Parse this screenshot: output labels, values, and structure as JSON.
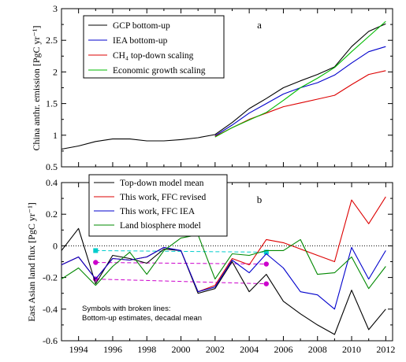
{
  "chart_data": [
    {
      "type": "line",
      "panel_label": "a",
      "title": "",
      "xlabel": "",
      "ylabel": "China anthr. emission [PgC yr⁻¹]",
      "xlim": [
        1993,
        2012.4
      ],
      "ylim": [
        0.5,
        3
      ],
      "yticks": [
        0.5,
        1,
        1.5,
        2,
        2.5,
        3
      ],
      "ytick_labels": [
        "0.5",
        "1",
        "1.5",
        "2",
        "2.5",
        "3"
      ],
      "legend_position": "top-left",
      "series": [
        {
          "name": "GCP bottom-up",
          "color": "#000000",
          "x": [
            1993,
            1994,
            1995,
            1996,
            1997,
            1998,
            1999,
            2000,
            2001,
            2002,
            2003,
            2004,
            2005,
            2006,
            2007,
            2008,
            2009,
            2010,
            2011,
            2012
          ],
          "y": [
            0.78,
            0.83,
            0.9,
            0.94,
            0.94,
            0.91,
            0.91,
            0.93,
            0.96,
            1.01,
            1.2,
            1.42,
            1.58,
            1.75,
            1.86,
            1.96,
            2.08,
            2.4,
            2.64,
            2.76
          ]
        },
        {
          "name": "IEA bottom-up",
          "color": "#0000cc",
          "x": [
            2002,
            2003,
            2004,
            2005,
            2006,
            2007,
            2008,
            2009,
            2010,
            2011,
            2012
          ],
          "y": [
            0.99,
            1.16,
            1.35,
            1.5,
            1.65,
            1.75,
            1.83,
            1.95,
            2.14,
            2.32,
            2.4
          ]
        },
        {
          "name": "CH₄ top-down scaling",
          "color": "#dd0000",
          "x": [
            2002,
            2003,
            2004,
            2005,
            2006,
            2007,
            2008,
            2009,
            2010,
            2011,
            2012
          ],
          "y": [
            0.98,
            1.12,
            1.25,
            1.35,
            1.45,
            1.51,
            1.57,
            1.63,
            1.8,
            1.96,
            2.02
          ]
        },
        {
          "name": "Economic growth scaling",
          "color": "#00bb00",
          "x": [
            2002,
            2003,
            2004,
            2005,
            2006,
            2007,
            2008,
            2009,
            2010,
            2011,
            2012
          ],
          "y": [
            0.97,
            1.12,
            1.24,
            1.36,
            1.55,
            1.75,
            1.9,
            2.07,
            2.32,
            2.56,
            2.8
          ]
        }
      ]
    },
    {
      "type": "line",
      "panel_label": "b",
      "title": "",
      "xlabel": "",
      "ylabel": "East Asian land flux [PgC yr⁻¹]",
      "xlim": [
        1993,
        2012.4
      ],
      "ylim": [
        -0.6,
        0.4
      ],
      "yticks": [
        -0.6,
        -0.4,
        -0.2,
        0,
        0.2,
        0.4
      ],
      "ytick_labels": [
        "-0.6",
        "-0.4",
        "-0.2",
        "0",
        "0.2",
        "0.4"
      ],
      "xticks": [
        1994,
        1996,
        1998,
        2000,
        2002,
        2004,
        2006,
        2008,
        2010,
        2012
      ],
      "xtick_labels": [
        "1994",
        "1996",
        "1998",
        "2000",
        "2002",
        "2004",
        "2006",
        "2008",
        "2010",
        "2012"
      ],
      "zero_line": "dotted",
      "legend_position": "top-left",
      "note": [
        "Symbols with broken lines:",
        "Bottom-up estimates, decadal mean"
      ],
      "series": [
        {
          "name": "Top-down model mean",
          "color": "#000000",
          "x": [
            1993,
            1994,
            1995,
            1996,
            1997,
            1998,
            1999,
            2000,
            2001,
            2002,
            2003,
            2004,
            2005,
            2006,
            2007,
            2008,
            2009,
            2010,
            2011,
            2012
          ],
          "y": [
            -0.03,
            0.11,
            -0.24,
            -0.06,
            -0.08,
            -0.11,
            -0.02,
            -0.03,
            -0.3,
            -0.27,
            -0.1,
            -0.29,
            -0.18,
            -0.35,
            -0.43,
            -0.5,
            -0.56,
            -0.28,
            -0.53,
            -0.4
          ]
        },
        {
          "name": "This work, FFC revised",
          "color": "#dd0000",
          "x": [
            1993,
            1994,
            1995,
            1996,
            1997,
            1998,
            1999,
            2000,
            2001,
            2002,
            2003,
            2004,
            2005,
            2006,
            2007,
            2008,
            2009,
            2010,
            2011,
            2012
          ],
          "y": [
            -0.12,
            -0.07,
            -0.21,
            -0.08,
            -0.09,
            -0.07,
            -0.01,
            -0.03,
            -0.29,
            -0.25,
            -0.08,
            -0.12,
            0.04,
            0.02,
            -0.02,
            -0.06,
            -0.1,
            0.29,
            0.14,
            0.31
          ]
        },
        {
          "name": "This work, FFC IEA",
          "color": "#0000cc",
          "x": [
            1993,
            1994,
            1995,
            1996,
            1997,
            1998,
            1999,
            2000,
            2001,
            2002,
            2003,
            2004,
            2005,
            2006,
            2007,
            2008,
            2009,
            2010,
            2011,
            2012
          ],
          "y": [
            -0.12,
            -0.07,
            -0.21,
            -0.08,
            -0.09,
            -0.07,
            -0.01,
            -0.03,
            -0.29,
            -0.26,
            -0.09,
            -0.17,
            -0.05,
            -0.14,
            -0.29,
            -0.31,
            -0.4,
            -0.01,
            -0.21,
            -0.03
          ]
        },
        {
          "name": "Land biosphere model",
          "color": "#008800",
          "x": [
            1993,
            1994,
            1995,
            1996,
            1997,
            1998,
            1999,
            2000,
            2001,
            2002,
            2003,
            2004,
            2005,
            2006,
            2007,
            2008,
            2009,
            2010,
            2011,
            2012
          ],
          "y": [
            -0.21,
            -0.14,
            -0.25,
            -0.13,
            -0.04,
            -0.18,
            -0.03,
            0.05,
            0.07,
            -0.21,
            -0.05,
            -0.06,
            -0.03,
            -0.03,
            0.04,
            -0.18,
            -0.17,
            -0.07,
            -0.27,
            -0.13
          ]
        }
      ],
      "decadal_means": [
        {
          "color": "#00cccc",
          "x": [
            1995,
            2005
          ],
          "y": [
            -0.03,
            -0.04
          ]
        },
        {
          "color": "#cc00cc",
          "x": [
            1995,
            2005
          ],
          "y": [
            -0.105,
            -0.115
          ]
        },
        {
          "color": "#cc00cc",
          "x": [
            1995,
            2005
          ],
          "y": [
            -0.21,
            -0.24
          ]
        }
      ]
    }
  ]
}
